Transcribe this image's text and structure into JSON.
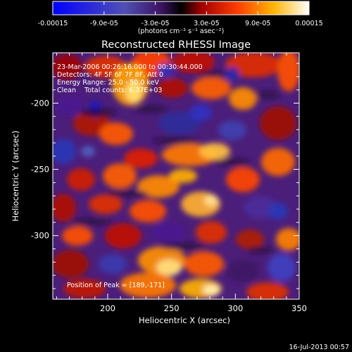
{
  "chart_data": {
    "type": "heatmap",
    "title": "Reconstructed RHESSI Image",
    "xlabel": "Heliocentric X (arcsec)",
    "ylabel": "Heliocentric Y (arcsec)",
    "xlim": [
      157,
      350
    ],
    "ylim": [
      -348,
      -162
    ],
    "x_ticks": [
      200,
      250,
      300,
      350
    ],
    "y_ticks": [
      -200,
      -250,
      -300
    ],
    "colormap": "RHESSI red-temperature (blue = negative, white = positive)",
    "colorbar": {
      "range": [
        -0.00015,
        0.00015
      ],
      "tick_values": [
        -0.00015,
        -9e-05,
        -3e-05,
        3e-05,
        9e-05,
        0.00015
      ],
      "tick_labels": [
        "-0.00015",
        "-9.0e-05",
        "-3.0e-05",
        "3.0e-05",
        "9.0e-05",
        "0.00015"
      ],
      "unit_label": "(photons cm⁻² s⁻¹ asec⁻²)"
    },
    "annotations": [
      "23-Mar-2006 00:26:16.000 to 00:30:44.000",
      "Detectors: 4F 5F 6F 7F 8F, Att 0",
      "Energy Range: 25.0 - 50.0 keV",
      "Clean    Total counts: 6.37E+03"
    ],
    "peak_label": "Position of Peak = [189,-171]",
    "peak_position": [
      189,
      -171
    ]
  },
  "footer": {
    "timestamp": "16-Jul-2013 00:57"
  }
}
